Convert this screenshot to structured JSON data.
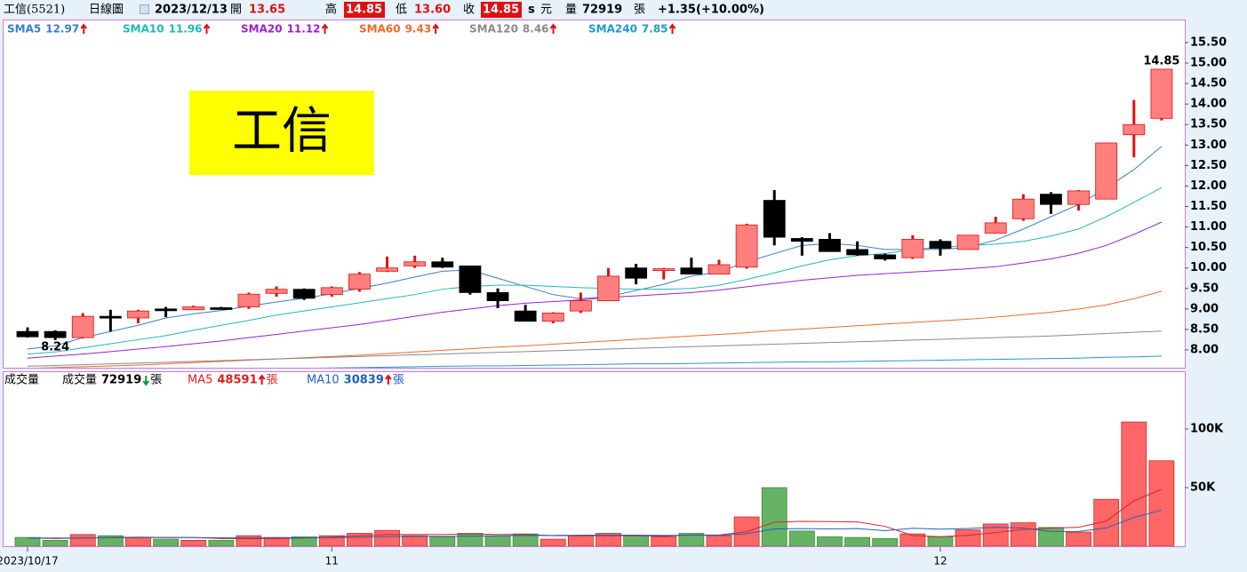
{
  "header": {
    "name": "工信(5521)",
    "period": "日線圖",
    "date": "2023/12/13",
    "open_label": "開",
    "open": "13.65",
    "high_label": "高",
    "high": "14.85",
    "low_label": "低",
    "low": "13.60",
    "close_label": "收",
    "close": "14.85",
    "s": "s",
    "currency": "元",
    "volume_label": "量",
    "volume": "72919",
    "unit": "張",
    "change": "+1.35",
    "change_pct": "(+10.00%)"
  },
  "chart_data": [
    {
      "type": "candlestick",
      "watermark": "工信",
      "open": [
        8.45,
        8.45,
        8.3,
        8.82,
        8.78,
        9.0,
        8.98,
        9.03,
        9.05,
        9.38,
        9.48,
        9.35,
        9.48,
        9.92,
        10.05,
        10.15,
        10.05,
        9.4,
        8.95,
        8.7,
        8.95,
        9.2,
        10.0,
        9.95,
        10.0,
        9.85,
        10.02,
        11.65,
        10.72,
        10.7,
        10.45,
        10.32,
        10.25,
        10.65,
        10.45,
        10.85,
        11.2,
        11.8,
        11.55,
        11.68,
        13.25,
        13.65
      ],
      "high": [
        8.55,
        8.48,
        8.9,
        8.98,
        8.98,
        9.05,
        9.08,
        9.05,
        9.4,
        9.55,
        9.5,
        9.55,
        9.9,
        10.28,
        10.3,
        10.25,
        10.05,
        9.5,
        9.1,
        8.92,
        9.4,
        10.0,
        10.1,
        10.0,
        10.25,
        10.2,
        11.08,
        11.9,
        10.75,
        10.85,
        10.65,
        10.35,
        10.8,
        10.7,
        10.8,
        11.25,
        11.8,
        11.85,
        11.9,
        13.05,
        14.1,
        14.85
      ],
      "low": [
        8.3,
        8.24,
        8.28,
        8.45,
        8.65,
        8.8,
        8.98,
        9.0,
        9.0,
        9.3,
        9.22,
        9.3,
        9.42,
        9.9,
        10.0,
        10.0,
        9.35,
        9.02,
        8.7,
        8.65,
        8.9,
        9.2,
        9.6,
        9.72,
        9.85,
        9.85,
        9.98,
        10.55,
        10.3,
        10.4,
        10.3,
        10.18,
        10.22,
        10.3,
        10.45,
        10.85,
        11.15,
        11.32,
        11.4,
        11.68,
        12.7,
        13.6
      ],
      "close": [
        8.32,
        8.3,
        8.82,
        8.78,
        8.95,
        8.98,
        9.05,
        9.02,
        9.36,
        9.48,
        9.26,
        9.52,
        9.85,
        10.0,
        10.15,
        10.02,
        9.4,
        9.2,
        8.7,
        8.9,
        9.2,
        9.8,
        9.75,
        9.98,
        9.85,
        10.08,
        11.05,
        10.75,
        10.65,
        10.4,
        10.32,
        10.22,
        10.7,
        10.48,
        10.8,
        11.1,
        11.68,
        11.55,
        11.88,
        13.05,
        13.5,
        14.85
      ],
      "up_color": "#ff7f7f",
      "up_edge": "#e01010",
      "down_color": "#000000",
      "series": [
        {
          "name": "SMA5",
          "color": "#3a7dcc",
          "values": [
            8.02,
            8.1,
            8.3,
            8.45,
            8.6,
            8.78,
            8.88,
            8.96,
            9.07,
            9.17,
            9.26,
            9.37,
            9.5,
            9.63,
            9.78,
            9.92,
            9.95,
            9.75,
            9.55,
            9.35,
            9.25,
            9.3,
            9.45,
            9.6,
            9.8,
            9.9,
            10.15,
            10.35,
            10.55,
            10.6,
            10.55,
            10.45,
            10.45,
            10.45,
            10.5,
            10.68,
            10.95,
            11.25,
            11.55,
            11.95,
            12.4,
            12.97
          ]
        },
        {
          "name": "SMA10",
          "color": "#22b8b8",
          "values": [
            7.9,
            7.95,
            8.05,
            8.15,
            8.25,
            8.35,
            8.48,
            8.6,
            8.72,
            8.85,
            8.95,
            9.05,
            9.15,
            9.25,
            9.35,
            9.48,
            9.55,
            9.58,
            9.58,
            9.55,
            9.52,
            9.5,
            9.48,
            9.48,
            9.5,
            9.58,
            9.72,
            9.88,
            10.05,
            10.2,
            10.3,
            10.35,
            10.45,
            10.5,
            10.55,
            10.58,
            10.65,
            10.78,
            10.95,
            11.25,
            11.6,
            11.96
          ]
        },
        {
          "name": "SMA20",
          "color": "#9a22d0",
          "values": [
            7.8,
            7.85,
            7.9,
            7.96,
            8.02,
            8.08,
            8.15,
            8.22,
            8.3,
            8.38,
            8.46,
            8.54,
            8.62,
            8.72,
            8.82,
            8.92,
            9.0,
            9.08,
            9.14,
            9.18,
            9.22,
            9.28,
            9.32,
            9.36,
            9.4,
            9.46,
            9.54,
            9.62,
            9.7,
            9.76,
            9.82,
            9.86,
            9.9,
            9.94,
            9.98,
            10.03,
            10.12,
            10.22,
            10.36,
            10.55,
            10.82,
            11.12
          ]
        },
        {
          "name": "SMA60",
          "color": "#ee6a2a",
          "values": [
            7.55,
            7.57,
            7.59,
            7.61,
            7.63,
            7.66,
            7.69,
            7.72,
            7.75,
            7.78,
            7.81,
            7.84,
            7.87,
            7.91,
            7.95,
            7.99,
            8.03,
            8.07,
            8.1,
            8.14,
            8.18,
            8.22,
            8.26,
            8.3,
            8.34,
            8.38,
            8.42,
            8.47,
            8.51,
            8.55,
            8.59,
            8.63,
            8.67,
            8.71,
            8.75,
            8.8,
            8.86,
            8.92,
            9.0,
            9.1,
            9.25,
            9.43
          ]
        },
        {
          "name": "SMA120",
          "color": "#8a8a8a",
          "values": [
            7.6,
            7.62,
            7.64,
            7.66,
            7.68,
            7.7,
            7.72,
            7.74,
            7.76,
            7.78,
            7.8,
            7.82,
            7.84,
            7.86,
            7.88,
            7.9,
            7.92,
            7.94,
            7.96,
            7.98,
            8.0,
            8.02,
            8.04,
            8.06,
            8.08,
            8.1,
            8.12,
            8.14,
            8.16,
            8.18,
            8.2,
            8.22,
            8.24,
            8.26,
            8.28,
            8.3,
            8.32,
            8.34,
            8.37,
            8.4,
            8.43,
            8.46
          ]
        },
        {
          "name": "SMA240",
          "color": "#2299cc",
          "values": [
            7.45,
            7.46,
            7.47,
            7.48,
            7.49,
            7.5,
            7.51,
            7.52,
            7.53,
            7.54,
            7.55,
            7.56,
            7.57,
            7.58,
            7.59,
            7.6,
            7.61,
            7.61,
            7.62,
            7.63,
            7.64,
            7.65,
            7.66,
            7.66,
            7.67,
            7.68,
            7.69,
            7.7,
            7.71,
            7.71,
            7.72,
            7.73,
            7.74,
            7.75,
            7.76,
            7.77,
            7.78,
            7.79,
            7.8,
            7.82,
            7.83,
            7.85
          ]
        }
      ],
      "ylim": [
        7.566,
        16.04
      ],
      "yticks": [
        {
          "value": 8,
          "label": "8.00"
        },
        {
          "value": 8.5,
          "label": "8.50"
        },
        {
          "value": 9,
          "label": "9.00"
        },
        {
          "value": 9.5,
          "label": "9.50"
        },
        {
          "value": 10,
          "label": "10.00"
        },
        {
          "value": 10.5,
          "label": "10.50"
        },
        {
          "value": 11,
          "label": "11.00"
        },
        {
          "value": 11.5,
          "label": "11.50"
        },
        {
          "value": 12,
          "label": "12.00"
        },
        {
          "value": 12.5,
          "label": "12.50"
        },
        {
          "value": 13,
          "label": "13.00"
        },
        {
          "value": 13.5,
          "label": "13.50"
        },
        {
          "value": 14,
          "label": "14.00"
        },
        {
          "value": 14.5,
          "label": "14.50"
        },
        {
          "value": 15,
          "label": "15.00"
        },
        {
          "value": 15.5,
          "label": "15.50"
        }
      ]
    },
    {
      "type": "bar",
      "title": "成交量",
      "unit": "張",
      "categories": [
        "2023/10/17",
        null,
        null,
        null,
        null,
        null,
        null,
        null,
        null,
        null,
        null,
        "11",
        null,
        null,
        null,
        null,
        null,
        null,
        null,
        null,
        null,
        null,
        null,
        null,
        null,
        null,
        null,
        null,
        null,
        null,
        null,
        null,
        null,
        "12",
        null,
        null,
        null,
        null,
        null,
        null,
        null,
        null
      ],
      "up_color": "#ff6666",
      "down_color": "#66b366",
      "series": [
        {
          "name": "成交量",
          "values": [
            7500,
            5000,
            10000,
            9000,
            7500,
            6000,
            5000,
            5000,
            9000,
            7500,
            8000,
            9000,
            11000,
            13500,
            9000,
            8000,
            11000,
            9000,
            10500,
            6000,
            9000,
            11000,
            9000,
            8000,
            11000,
            9000,
            25000,
            50000,
            13000,
            8000,
            7500,
            6500,
            10500,
            8000,
            14000,
            19000,
            20000,
            16000,
            12000,
            40000,
            106000,
            72919
          ]
        },
        {
          "name": "MA5",
          "color": "#e02020",
          "values": [
            7000,
            6500,
            7000,
            7500,
            7800,
            7500,
            7500,
            6500,
            6500,
            6500,
            7000,
            7800,
            9000,
            10000,
            10000,
            10000,
            10500,
            10000,
            10000,
            9000,
            9000,
            9000,
            9000,
            8600,
            9600,
            9600,
            12400,
            20600,
            21200,
            21000,
            20700,
            17000,
            9100,
            8100,
            9300,
            11600,
            14300,
            15400,
            16200,
            21400,
            38800,
            48591
          ]
        },
        {
          "name": "MA10",
          "color": "#2060c0",
          "values": [
            7000,
            7000,
            7000,
            7200,
            7400,
            7400,
            7400,
            7200,
            7100,
            7100,
            7200,
            7300,
            7700,
            8200,
            8400,
            8400,
            8600,
            8800,
            9300,
            9200,
            9500,
            9500,
            9500,
            9300,
            9500,
            9300,
            10700,
            14800,
            15100,
            14800,
            15100,
            13300,
            15300,
            14600,
            15200,
            16200,
            15500,
            12600,
            12600,
            15600,
            24500,
            30839
          ]
        }
      ],
      "ylim": [
        0,
        148500
      ],
      "yticks": [
        {
          "value": 50000,
          "label": "50K"
        },
        {
          "value": 100000,
          "label": "100K"
        }
      ]
    }
  ]
}
